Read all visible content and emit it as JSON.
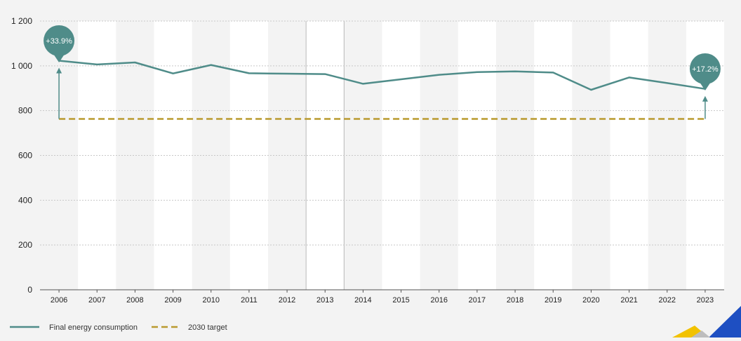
{
  "chart_data": {
    "type": "line",
    "title": "",
    "xlabel": "",
    "ylabel": "",
    "categories": [
      "2006",
      "2007",
      "2008",
      "2009",
      "2010",
      "2011",
      "2012",
      "2013",
      "2014",
      "2015",
      "2016",
      "2017",
      "2018",
      "2019",
      "2020",
      "2021",
      "2022",
      "2023"
    ],
    "series": [
      {
        "name": "Final energy consumption",
        "color": "#4f8c89",
        "style": "solid",
        "values": [
          1023,
          1006,
          1015,
          966,
          1004,
          967,
          965,
          963,
          920,
          940,
          960,
          972,
          975,
          970,
          893,
          948,
          923,
          897
        ]
      },
      {
        "name": "2030 target",
        "color": "#b99a2e",
        "style": "dashed",
        "values": [
          763,
          763,
          763,
          763,
          763,
          763,
          763,
          763,
          763,
          763,
          763,
          763,
          763,
          763,
          763,
          763,
          763,
          763
        ]
      }
    ],
    "ylim": [
      0,
      1200
    ],
    "yticks": [
      0,
      200,
      400,
      600,
      800,
      1000,
      1200
    ],
    "ytick_labels": [
      "0",
      "200",
      "400",
      "600",
      "800",
      "1 000",
      "1 200"
    ],
    "grid": true,
    "legend_position": "bottom-left",
    "annotations": [
      {
        "category": "2006",
        "text": "+33.9%"
      },
      {
        "category": "2023",
        "text": "+17.2%"
      }
    ]
  },
  "colors": {
    "background": "#f3f3f3",
    "band": "#ffffff",
    "bubble": "#4f8c89",
    "arrow": "#4f8c89",
    "grid": "#c8c8c8",
    "divider": "#b9b9b9"
  }
}
